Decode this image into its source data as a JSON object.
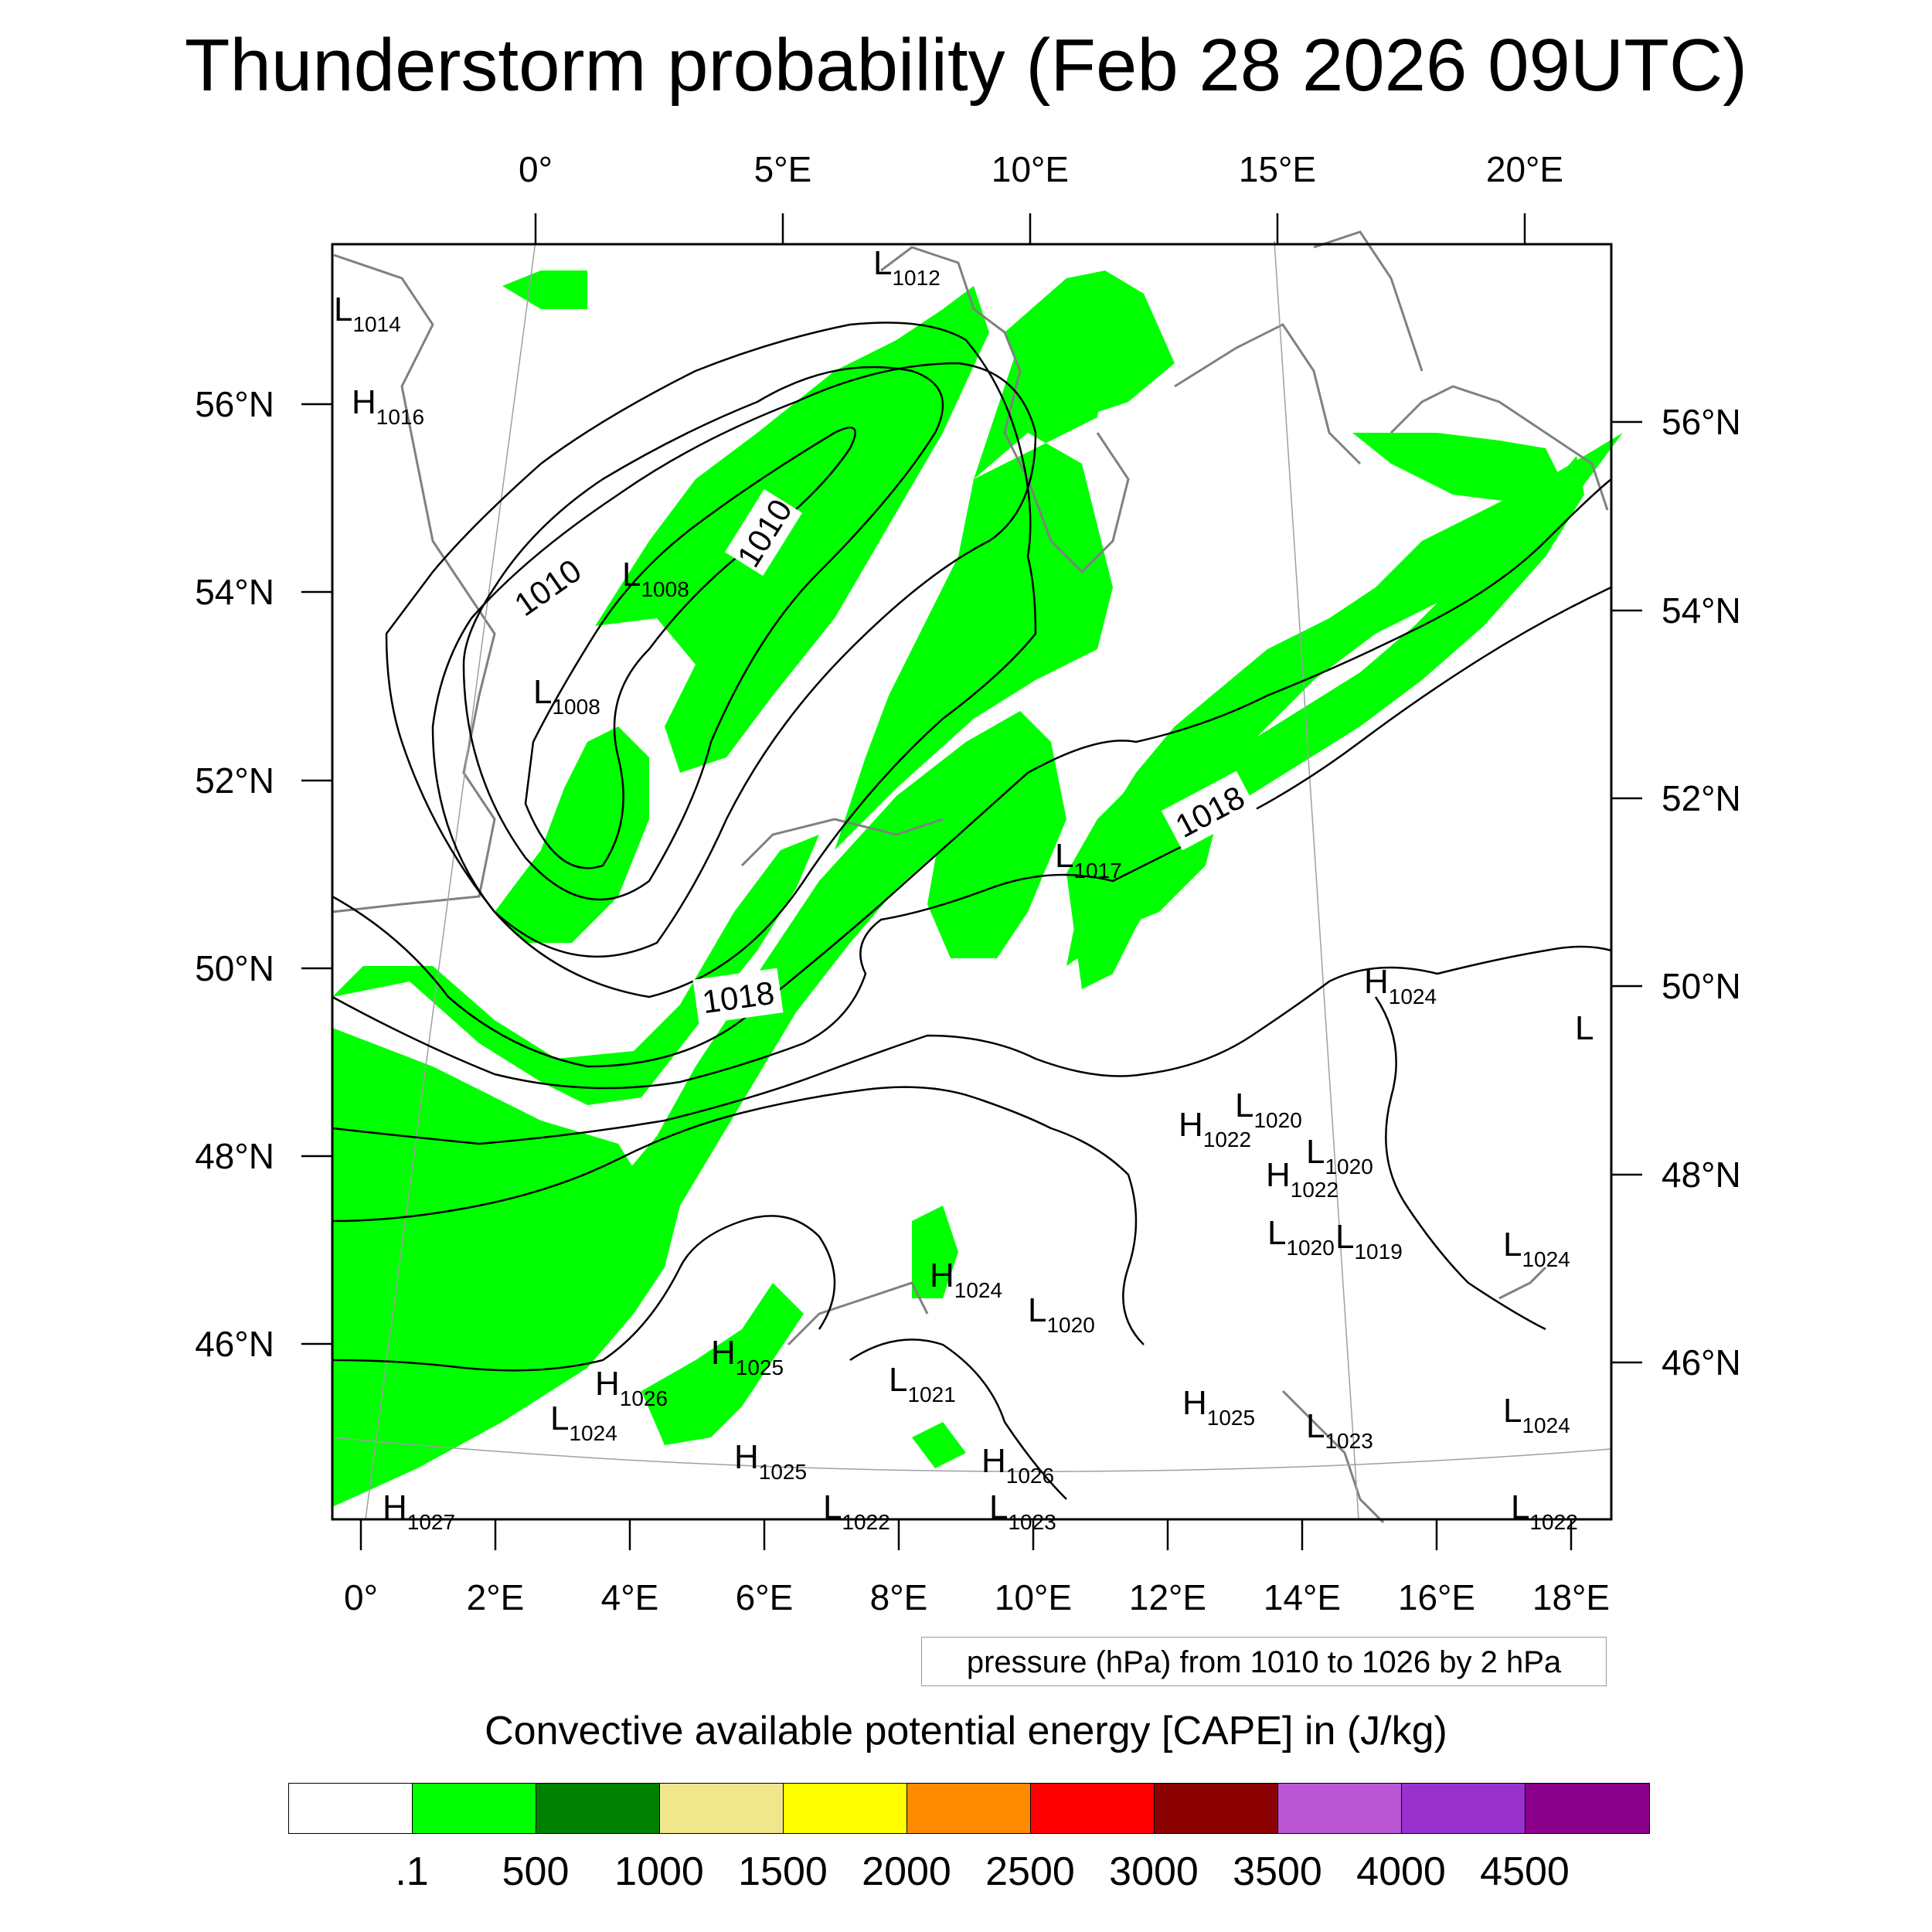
{
  "title": "Thunderstorm probability (Feb 28 2026 09UTC)",
  "top_lon_labels": [
    "0°",
    "5°E",
    "10°E",
    "15°E",
    "20°E"
  ],
  "bottom_lon_labels": [
    "0°",
    "2°E",
    "4°E",
    "6°E",
    "8°E",
    "10°E",
    "12°E",
    "14°E",
    "16°E",
    "18°E"
  ],
  "left_lat_labels": [
    "56°N",
    "54°N",
    "52°N",
    "50°N",
    "48°N",
    "46°N"
  ],
  "right_lat_labels": [
    "56°N",
    "54°N",
    "52°N",
    "50°N",
    "48°N",
    "46°N"
  ],
  "isobar_labels": [
    "1010",
    "1010",
    "1018",
    "1018"
  ],
  "pressure_marks": [
    {
      "type": "L",
      "value": "1012"
    },
    {
      "type": "L",
      "value": "1014"
    },
    {
      "type": "H",
      "value": "1016"
    },
    {
      "type": "L",
      "value": "1008"
    },
    {
      "type": "L",
      "value": "1008"
    },
    {
      "type": "L",
      "value": "1017"
    },
    {
      "type": "H",
      "value": "1024"
    },
    {
      "type": "L",
      "value": ""
    },
    {
      "type": "L",
      "value": "1020"
    },
    {
      "type": "H",
      "value": "1022"
    },
    {
      "type": "L",
      "value": "1020"
    },
    {
      "type": "H",
      "value": "1022"
    },
    {
      "type": "L",
      "value": "1020"
    },
    {
      "type": "L",
      "value": "1019"
    },
    {
      "type": "L",
      "value": "1024"
    },
    {
      "type": "H",
      "value": "1024"
    },
    {
      "type": "L",
      "value": "1020"
    },
    {
      "type": "H",
      "value": "1025"
    },
    {
      "type": "H",
      "value": "1026"
    },
    {
      "type": "L",
      "value": "1024"
    },
    {
      "type": "L",
      "value": "1021"
    },
    {
      "type": "H",
      "value": "1025"
    },
    {
      "type": "L",
      "value": "1023"
    },
    {
      "type": "L",
      "value": "1024"
    },
    {
      "type": "H",
      "value": "1025"
    },
    {
      "type": "H",
      "value": "1026"
    },
    {
      "type": "H",
      "value": "1027"
    },
    {
      "type": "L",
      "value": "1022"
    },
    {
      "type": "L",
      "value": "1023"
    },
    {
      "type": "L",
      "value": "1022"
    }
  ],
  "pressure_note": "pressure (hPa) from 1010 to 1026 by 2 hPa",
  "colorbar": {
    "title": "Convective available potential energy [CAPE] in (J/kg)",
    "colors": [
      "#ffffff",
      "#00ff00",
      "#008000",
      "#f0e68c",
      "#ffff00",
      "#ff8c00",
      "#ff0000",
      "#8b0000",
      "#ba55d3",
      "#9932cc",
      "#8b008b"
    ],
    "labels": [
      ".1",
      "500",
      "1000",
      "1500",
      "2000",
      "2500",
      "3000",
      "3500",
      "4000",
      "4500"
    ]
  },
  "field_color": "#00ff00"
}
